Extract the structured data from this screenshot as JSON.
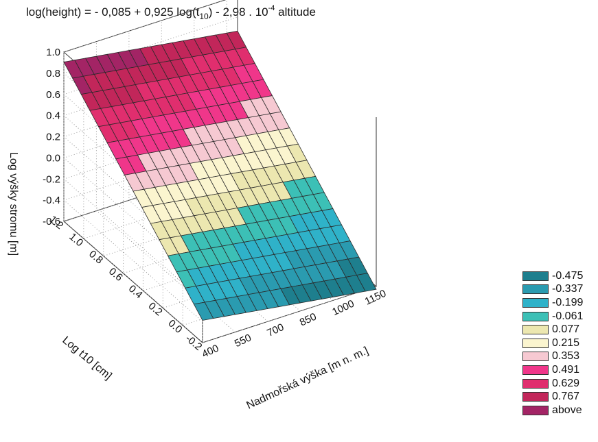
{
  "title": {
    "prefix": "log(height) = - 0,085 + 0,925 log(t",
    "sub": "10",
    "middle": ") - 2,98 . 10",
    "sup": "-4",
    "suffix": " altitude"
  },
  "colors": {
    "levels": [
      "#1e7f8e",
      "#2a9bb0",
      "#2fb2c9",
      "#3cc0b6",
      "#ece7b0",
      "#fbf5cf",
      "#f6c9d2",
      "#f0368a",
      "#e02e6e",
      "#c2265a",
      "#a32465"
    ],
    "grid_line": "#2a2a2a"
  },
  "chart_data": {
    "type": "surface",
    "model": {
      "intercept": -0.085,
      "coef_log_t10": 0.925,
      "coef_altitude": -0.000298
    },
    "x_axis": {
      "label": "Nadmořská výška [m n. m.]",
      "range": [
        400,
        1200
      ],
      "ticks": [
        "400",
        "550",
        "700",
        "850",
        "1000",
        "1150"
      ]
    },
    "y_axis": {
      "label": "Log t10 [cm]",
      "range": [
        -0.2,
        1.2
      ],
      "ticks": [
        "-0.2",
        "0.0",
        "0.2",
        "0.4",
        "0.6",
        "0.8",
        "1.0",
        "1.2"
      ]
    },
    "z_axis": {
      "label": "Log výšky stromu [m]",
      "range": [
        -0.6,
        1.0
      ],
      "ticks": [
        "-0.6",
        "-0.4",
        "-0.2",
        "0.0",
        "0.2",
        "0.4",
        "0.6",
        "0.8",
        "1.0"
      ]
    },
    "legend": {
      "placement": "right",
      "entries": [
        "-0.475",
        "-0.337",
        "-0.199",
        "-0.061",
        "0.077",
        "0.215",
        "0.353",
        "0.491",
        "0.629",
        "0.767",
        "above"
      ],
      "thresholds": [
        -0.475,
        -0.337,
        -0.199,
        -0.061,
        0.077,
        0.215,
        0.353,
        0.491,
        0.629,
        0.767
      ]
    },
    "grid": true
  }
}
